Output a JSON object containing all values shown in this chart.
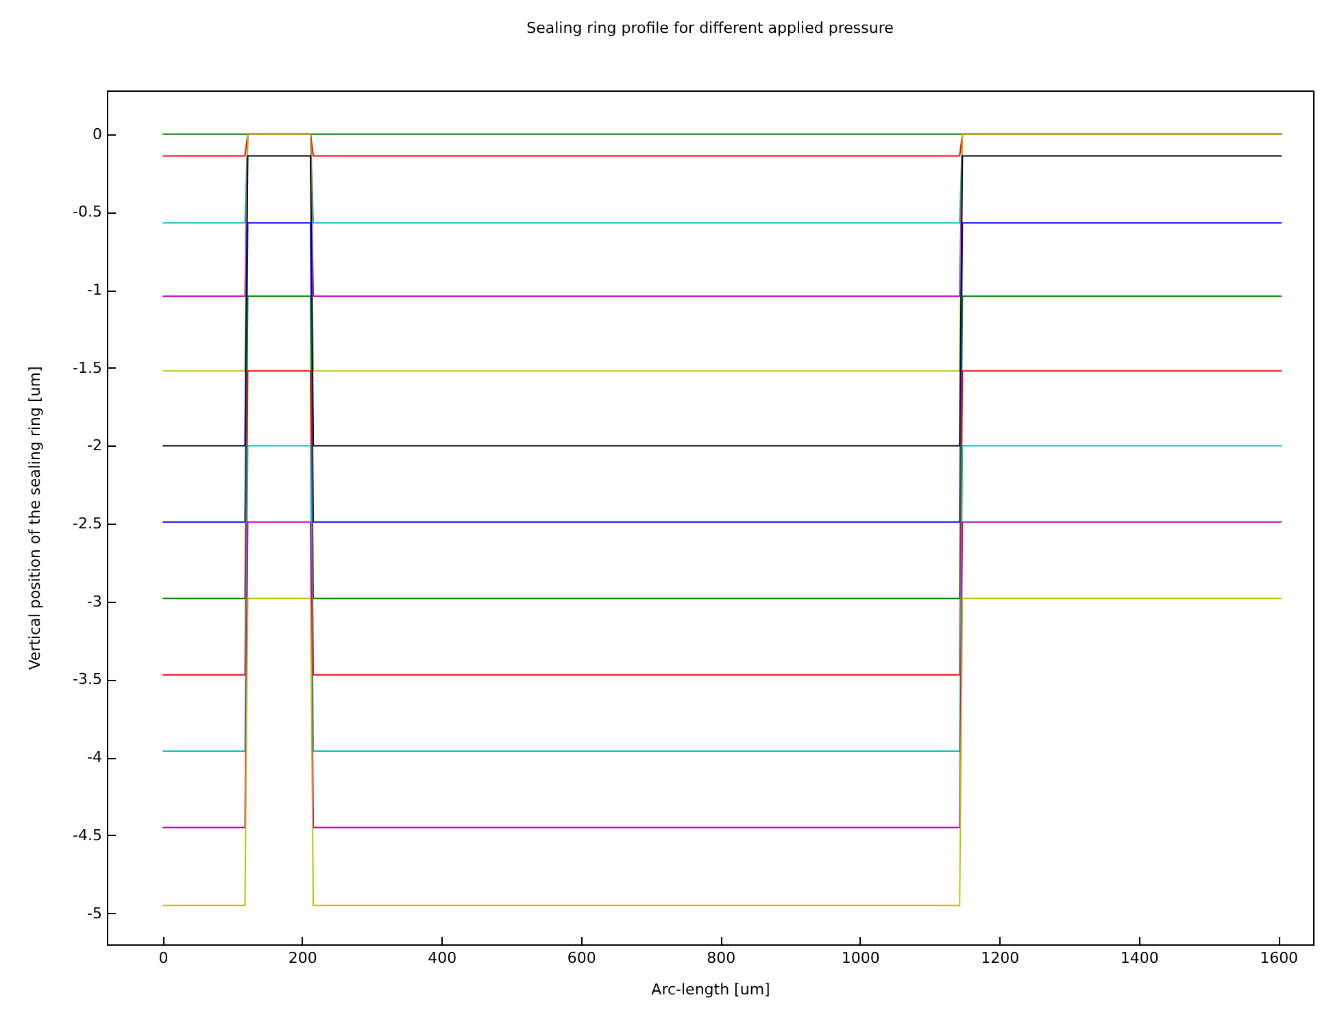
{
  "chart_data": {
    "type": "line",
    "title": "Sealing ring profile for different applied pressure",
    "xlabel": "Arc-length [um]",
    "ylabel": "Vertical position of the sealing ring [um]",
    "x": [
      0,
      118,
      122,
      212,
      216,
      1143,
      1147,
      1605
    ],
    "series": [
      {
        "color": "#008000",
        "values": [
          0,
          0,
          0,
          0,
          0,
          0,
          0,
          0
        ]
      },
      {
        "color": "#ff0000",
        "values": [
          -0.14,
          -0.14,
          0,
          0,
          -0.14,
          -0.14,
          0,
          0
        ]
      },
      {
        "color": "#00c0c0",
        "values": [
          -0.57,
          -0.57,
          0,
          0,
          -0.57,
          -0.57,
          0,
          0
        ]
      },
      {
        "color": "#c000c0",
        "values": [
          -1.04,
          -1.04,
          0,
          0,
          -1.04,
          -1.04,
          0,
          0
        ]
      },
      {
        "color": "#c0c000",
        "values": [
          -1.52,
          -1.52,
          0,
          0,
          -1.52,
          -1.52,
          0,
          0
        ]
      },
      {
        "color": "#000000",
        "values": [
          -2.0,
          -2.0,
          -0.14,
          -0.14,
          -2.0,
          -2.0,
          -0.14,
          -0.14
        ]
      },
      {
        "color": "#0000ff",
        "values": [
          -2.49,
          -2.49,
          -0.57,
          -0.57,
          -2.49,
          -2.49,
          -0.57,
          -0.57
        ]
      },
      {
        "color": "#008000",
        "values": [
          -2.98,
          -2.98,
          -1.04,
          -1.04,
          -2.98,
          -2.98,
          -1.04,
          -1.04
        ]
      },
      {
        "color": "#ff0000",
        "values": [
          -3.47,
          -3.47,
          -1.52,
          -1.52,
          -3.47,
          -3.47,
          -1.52,
          -1.52
        ]
      },
      {
        "color": "#00c0c0",
        "values": [
          -3.96,
          -3.96,
          -2.0,
          -2.0,
          -3.96,
          -3.96,
          -2.0,
          -2.0
        ]
      },
      {
        "color": "#c000c0",
        "values": [
          -4.45,
          -4.45,
          -2.49,
          -2.49,
          -4.45,
          -4.45,
          -2.49,
          -2.49
        ]
      },
      {
        "color": "#c0c000",
        "values": [
          -4.95,
          -4.95,
          -2.98,
          -2.98,
          -4.95,
          -4.95,
          -2.98,
          -2.98
        ]
      }
    ],
    "xlim": [
      -80,
      1650
    ],
    "xticks": [
      0,
      200,
      400,
      600,
      800,
      1000,
      1200,
      1400,
      1600
    ],
    "ylim": [
      -5.2,
      0.28
    ],
    "yticks": [
      0,
      -0.5,
      -1,
      -1.5,
      -2,
      -2.5,
      -3,
      -3.5,
      -4,
      -4.5,
      -5
    ],
    "grid": false,
    "legend": false
  }
}
